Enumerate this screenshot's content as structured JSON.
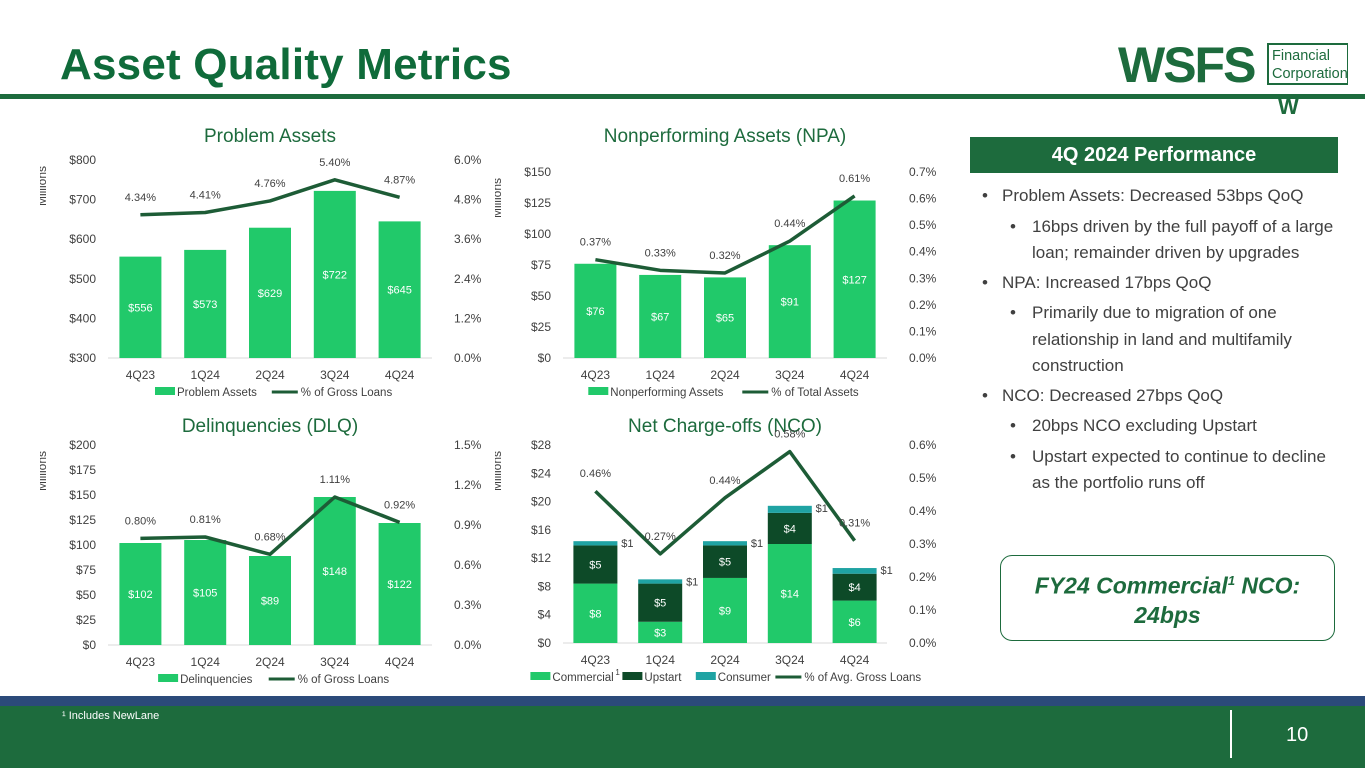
{
  "page": {
    "title": "Asset Quality Metrics",
    "page_number": "10",
    "footnote": "¹ Includes NewLane"
  },
  "logo": {
    "text": "WSFS",
    "line1": "Financial",
    "line2": "Corporation",
    "mark": "W",
    "color": "#1d6b3d"
  },
  "colors": {
    "bar": "#21c96a",
    "line": "#1d5c36",
    "upstart": "#0d4a28",
    "consumer": "#1fa3a3",
    "brand": "#1d6b3d"
  },
  "performance": {
    "header": "4Q 2024 Performance",
    "items": [
      {
        "text": "Problem Assets: Decreased 53bps QoQ",
        "subs": [
          "16bps driven by the full payoff of a large loan; remainder driven by upgrades"
        ]
      },
      {
        "text": "NPA: Increased 17bps QoQ",
        "subs": [
          "Primarily due to migration of one relationship in land and multifamily construction"
        ]
      },
      {
        "text": "NCO: Decreased 27bps QoQ",
        "subs": [
          "20bps NCO excluding Upstart",
          "Upstart expected to continue to decline as the portfolio runs off"
        ]
      }
    ],
    "callout": {
      "line1_pre": "FY24 Commercial",
      "line1_sup": "1",
      "line1_post": " NCO:",
      "line2": "24bps"
    }
  },
  "chart_data": [
    {
      "id": "problem-assets",
      "type": "bar",
      "title": "Problem Assets",
      "ylabel": "Millions",
      "categories": [
        "4Q23",
        "1Q24",
        "2Q24",
        "3Q24",
        "4Q24"
      ],
      "ylim": [
        300,
        800
      ],
      "yticks": [
        "$300",
        "$400",
        "$500",
        "$600",
        "$700",
        "$800"
      ],
      "y2lim": [
        0,
        6
      ],
      "y2ticks": [
        "0.0%",
        "1.2%",
        "2.4%",
        "3.6%",
        "4.8%",
        "6.0%"
      ],
      "series": [
        {
          "name": "Problem Assets",
          "kind": "bar",
          "values": [
            556,
            573,
            629,
            722,
            645
          ],
          "labels": [
            "$556",
            "$573",
            "$629",
            "$722",
            "$645"
          ]
        }
      ],
      "line": {
        "name": "% of Gross Loans",
        "values": [
          4.34,
          4.41,
          4.76,
          5.4,
          4.87
        ],
        "labels": [
          "4.34%",
          "4.41%",
          "4.76%",
          "5.40%",
          "4.87%"
        ]
      },
      "legend": [
        "Problem Assets",
        "% of Gross Loans"
      ]
    },
    {
      "id": "npa",
      "type": "bar",
      "title": "Nonperforming Assets (NPA)",
      "ylabel": "Millions",
      "categories": [
        "4Q23",
        "1Q24",
        "2Q24",
        "3Q24",
        "4Q24"
      ],
      "ylim": [
        0,
        150
      ],
      "yticks": [
        "$0",
        "$25",
        "$50",
        "$75",
        "$100",
        "$125",
        "$150"
      ],
      "y2lim": [
        0,
        0.7
      ],
      "y2ticks": [
        "0.0%",
        "0.1%",
        "0.2%",
        "0.3%",
        "0.4%",
        "0.5%",
        "0.6%",
        "0.7%"
      ],
      "series": [
        {
          "name": "Nonperforming Assets",
          "kind": "bar",
          "values": [
            76,
            67,
            65,
            91,
            127
          ],
          "labels": [
            "$76",
            "$67",
            "$65",
            "$91",
            "$127"
          ]
        }
      ],
      "line": {
        "name": "% of Total Assets",
        "values": [
          0.37,
          0.33,
          0.32,
          0.44,
          0.61
        ],
        "labels": [
          "0.37%",
          "0.33%",
          "0.32%",
          "0.44%",
          "0.61%"
        ]
      },
      "legend": [
        "Nonperforming Assets",
        "% of Total Assets"
      ]
    },
    {
      "id": "dlq",
      "type": "bar",
      "title": "Delinquencies (DLQ)",
      "ylabel": "Millions",
      "categories": [
        "4Q23",
        "1Q24",
        "2Q24",
        "3Q24",
        "4Q24"
      ],
      "ylim": [
        0,
        200
      ],
      "yticks": [
        "$0",
        "$25",
        "$50",
        "$75",
        "$100",
        "$125",
        "$150",
        "$175",
        "$200"
      ],
      "y2lim": [
        0,
        1.5
      ],
      "y2ticks": [
        "0.0%",
        "0.3%",
        "0.6%",
        "0.9%",
        "1.2%",
        "1.5%"
      ],
      "series": [
        {
          "name": "Delinquencies",
          "kind": "bar",
          "values": [
            102,
            105,
            89,
            148,
            122
          ],
          "labels": [
            "$102",
            "$105",
            "$89",
            "$148",
            "$122"
          ]
        }
      ],
      "line": {
        "name": "% of Gross Loans",
        "values": [
          0.8,
          0.81,
          0.68,
          1.11,
          0.92
        ],
        "labels": [
          "0.80%",
          "0.81%",
          "0.68%",
          "1.11%",
          "0.92%"
        ]
      },
      "legend": [
        "Delinquencies",
        "% of Gross Loans"
      ]
    },
    {
      "id": "nco",
      "type": "bar",
      "stacked": true,
      "title": "Net Charge-offs (NCO)",
      "ylabel": "Millions",
      "categories": [
        "4Q23",
        "1Q24",
        "2Q24",
        "3Q24",
        "4Q24"
      ],
      "ylim": [
        0,
        28
      ],
      "yticks": [
        "$0",
        "$4",
        "$8",
        "$12",
        "$16",
        "$20",
        "$24",
        "$28"
      ],
      "y2lim": [
        0,
        0.6
      ],
      "y2ticks": [
        "0.0%",
        "0.1%",
        "0.2%",
        "0.3%",
        "0.4%",
        "0.5%",
        "0.6%"
      ],
      "series": [
        {
          "name": "Commercial",
          "kind": "bar",
          "values": [
            8.4,
            3.0,
            9.2,
            14.0,
            6.0
          ],
          "labels": [
            "$8",
            "$3",
            "$9",
            "$14",
            "$6"
          ]
        },
        {
          "name": "Upstart",
          "kind": "bar",
          "values": [
            5.4,
            5.4,
            4.6,
            4.4,
            3.8
          ],
          "labels": [
            "$5",
            "$5",
            "$5",
            "$4",
            "$4"
          ]
        },
        {
          "name": "Consumer",
          "kind": "bar",
          "values": [
            0.6,
            0.6,
            0.6,
            1.0,
            0.8
          ],
          "labels": [
            "$1",
            "$1",
            "$1",
            "$1",
            "$1"
          ]
        }
      ],
      "line": {
        "name": "% of Avg. Gross Loans",
        "values": [
          0.46,
          0.27,
          0.44,
          0.58,
          0.31
        ],
        "labels": [
          "0.46%",
          "0.27%",
          "0.44%",
          "0.58%",
          "0.31%"
        ]
      },
      "legend": [
        "Commercial",
        "Upstart",
        "Consumer",
        "% of Avg. Gross Loans"
      ],
      "legend_sup": "1"
    }
  ]
}
